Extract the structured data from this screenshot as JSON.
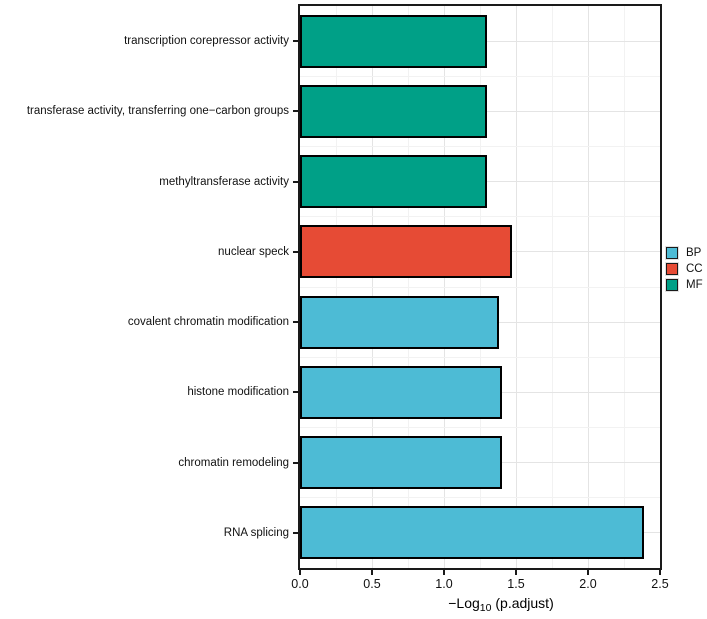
{
  "figure": {
    "background_color": "#FFFFFF"
  },
  "axis_title": {
    "prefix": "−Log",
    "subscript": "10",
    "suffix": " (p.adjust)"
  },
  "chart_data": {
    "type": "bar",
    "orientation": "horizontal",
    "title": "",
    "xlabel": "−Log10 (p.adjust)",
    "ylabel": "",
    "xlim": [
      0,
      2.5
    ],
    "x_ticks": [
      0.0,
      0.5,
      1.0,
      1.5,
      2.0,
      2.5
    ],
    "x_tick_labels": [
      "0.0",
      "0.5",
      "1.0",
      "1.5",
      "2.0",
      "2.5"
    ],
    "grid": true,
    "minor_grid_step": 0.25,
    "legend_position": "right",
    "categories": [
      "transcription corepressor activity",
      "transferase activity, transferring one−carbon groups",
      "methyltransferase activity",
      "nuclear speck",
      "covalent chromatin modification",
      "histone modification",
      "chromatin remodeling",
      "RNA splicing"
    ],
    "bars": [
      {
        "category": "transcription corepressor activity",
        "value": 1.3,
        "group": "MF"
      },
      {
        "category": "transferase activity, transferring one−carbon groups",
        "value": 1.3,
        "group": "MF"
      },
      {
        "category": "methyltransferase activity",
        "value": 1.3,
        "group": "MF"
      },
      {
        "category": "nuclear speck",
        "value": 1.47,
        "group": "CC"
      },
      {
        "category": "covalent chromatin modification",
        "value": 1.38,
        "group": "BP"
      },
      {
        "category": "histone modification",
        "value": 1.4,
        "group": "BP"
      },
      {
        "category": "chromatin remodeling",
        "value": 1.4,
        "group": "BP"
      },
      {
        "category": "RNA splicing",
        "value": 2.39,
        "group": "BP"
      }
    ],
    "groups": [
      {
        "name": "BP",
        "color": "#4DBBD5"
      },
      {
        "name": "CC",
        "color": "#E64B35"
      },
      {
        "name": "MF",
        "color": "#00A087"
      }
    ],
    "styles": {
      "bar_border": "#000000",
      "panel_border": "#1A1A1A",
      "grid_major": "#E4E4E4",
      "grid_minor": "#F2F2F2",
      "text": "#111111"
    }
  }
}
